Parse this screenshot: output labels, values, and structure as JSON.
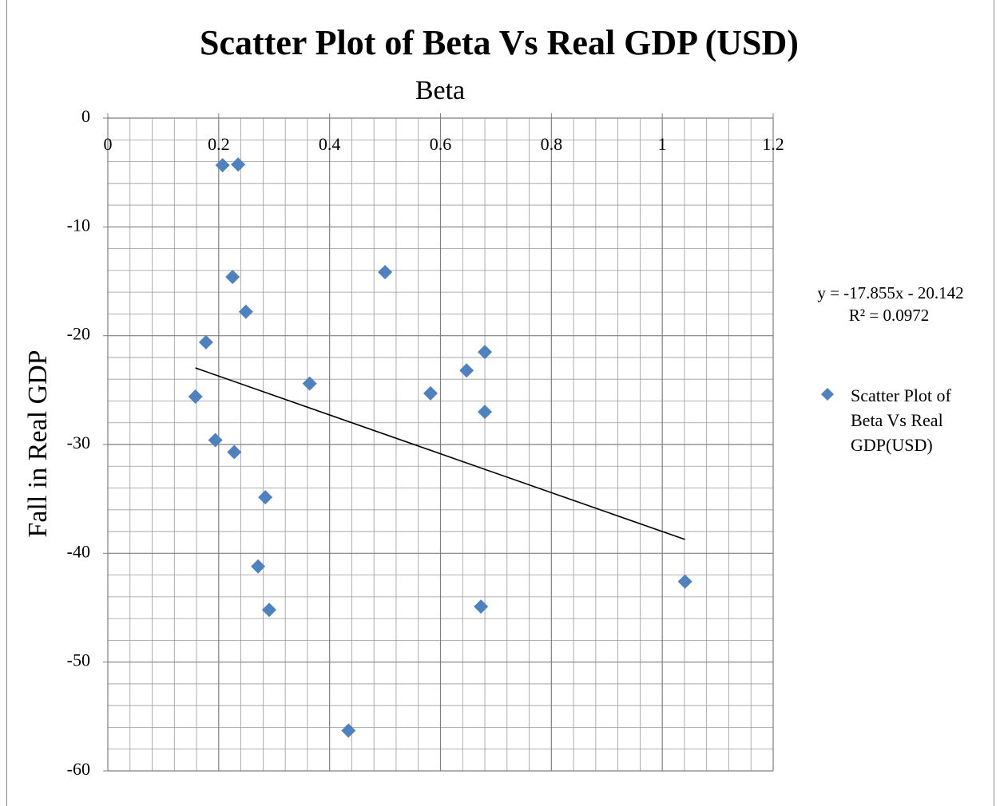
{
  "chart_data": {
    "type": "scatter",
    "title": "Scatter Plot of Beta Vs Real GDP (USD)",
    "x_label": "Beta",
    "y_label": "Fall in Real GDP",
    "series": [
      {
        "name": "Scatter Plot of Beta Vs Real GDP(USD)",
        "color": "#4f81bd",
        "x": [
          0.207,
          0.235,
          0.225,
          0.5,
          0.249,
          0.177,
          0.68,
          0.647,
          0.364,
          0.158,
          0.582,
          0.68,
          0.194,
          0.228,
          0.284,
          0.271,
          0.291,
          0.673,
          1.041,
          0.434
        ],
        "values": [
          -4.33,
          -4.26,
          -14.6,
          -14.16,
          -17.8,
          -20.6,
          -21.5,
          -23.2,
          -24.4,
          -25.6,
          -25.3,
          -27.0,
          -29.6,
          -30.7,
          -34.85,
          -41.2,
          -45.2,
          -44.9,
          -42.6,
          -56.3
        ]
      }
    ],
    "trendline": {
      "slope": -17.855,
      "intercept": -20.142,
      "color": "#000000",
      "equation": "y = -17.855x - 20.142",
      "r_squared_label": "R² = 0.0972"
    },
    "xlim": [
      0,
      1.2
    ],
    "xticks": [
      0,
      0.2,
      0.4,
      0.6,
      0.8,
      1,
      1.2
    ],
    "ylim": [
      -60,
      0
    ],
    "yticks": [
      0,
      -10,
      -20,
      -30,
      -40,
      -50,
      -60
    ],
    "grid": true,
    "minor_grid": true,
    "legend": "right"
  }
}
